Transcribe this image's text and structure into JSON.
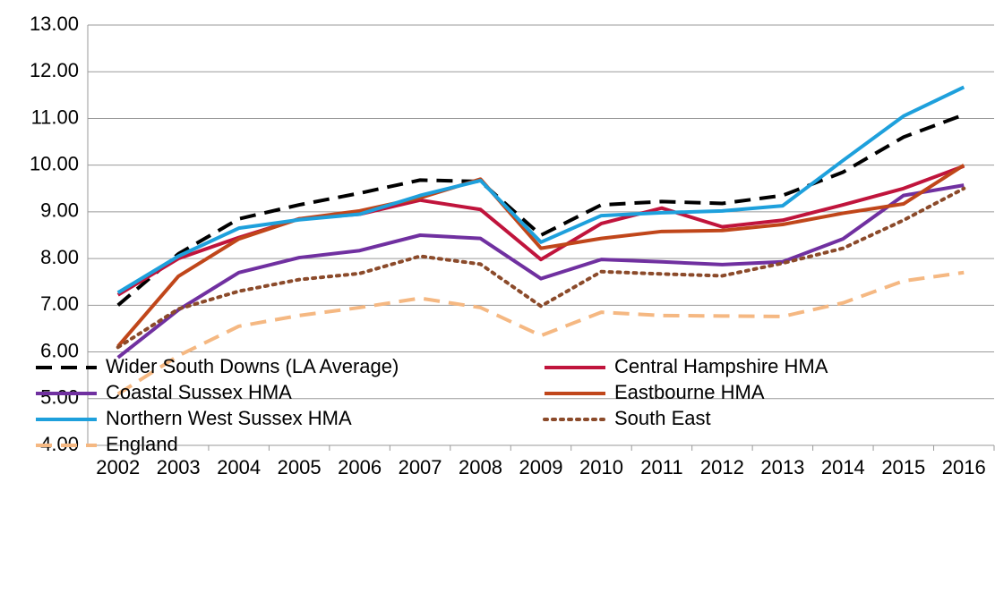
{
  "chart_data": {
    "type": "line",
    "categories": [
      "2002",
      "2003",
      "2004",
      "2005",
      "2006",
      "2007",
      "2008",
      "2009",
      "2010",
      "2011",
      "2012",
      "2013",
      "2014",
      "2015",
      "2016"
    ],
    "ylim": [
      4,
      13
    ],
    "yticks": [
      {
        "value": 4,
        "label": "4.00"
      },
      {
        "value": 5,
        "label": "5.00"
      },
      {
        "value": 6,
        "label": "6.00"
      },
      {
        "value": 7,
        "label": "7.00"
      },
      {
        "value": 8,
        "label": "8.00"
      },
      {
        "value": 9,
        "label": "9.00"
      },
      {
        "value": 10,
        "label": "10.00"
      },
      {
        "value": 11,
        "label": "11.00"
      },
      {
        "value": 12,
        "label": "12.00"
      },
      {
        "value": 13,
        "label": "13.00"
      }
    ],
    "grid": true,
    "legend": "bottom",
    "series": [
      {
        "name": "Wider South Downs (LA Average)",
        "color": "#000000",
        "style": "dashed",
        "values": [
          7.0,
          8.1,
          8.85,
          9.15,
          9.4,
          9.68,
          9.65,
          8.5,
          9.15,
          9.22,
          9.18,
          9.35,
          9.85,
          10.6,
          11.08
        ]
      },
      {
        "name": "Central Hampshire HMA",
        "color": "#c0143c",
        "style": "solid",
        "values": [
          7.22,
          8.0,
          8.45,
          8.85,
          8.95,
          9.25,
          9.05,
          7.98,
          8.75,
          9.08,
          8.68,
          8.82,
          9.15,
          9.5,
          9.98
        ]
      },
      {
        "name": "Coastal Sussex HMA",
        "color": "#7030a0",
        "style": "solid",
        "values": [
          5.88,
          6.9,
          7.7,
          8.02,
          8.17,
          8.5,
          8.43,
          7.57,
          7.98,
          7.93,
          7.87,
          7.93,
          8.42,
          9.35,
          9.57
        ]
      },
      {
        "name": "Eastbourne HMA",
        "color": "#c0461a",
        "style": "solid",
        "values": [
          6.12,
          7.62,
          8.42,
          8.85,
          9.02,
          9.3,
          9.7,
          8.22,
          8.43,
          8.58,
          8.6,
          8.73,
          8.97,
          9.17,
          10.0
        ]
      },
      {
        "name": "Northern West Sussex HMA",
        "color": "#1ea0dc",
        "style": "solid",
        "values": [
          7.27,
          8.05,
          8.65,
          8.83,
          8.95,
          9.35,
          9.67,
          8.35,
          8.92,
          8.98,
          9.02,
          9.13,
          10.1,
          11.05,
          11.67
        ]
      },
      {
        "name": "South East",
        "color": "#8b4a2a",
        "style": "dotted",
        "values": [
          6.1,
          6.92,
          7.3,
          7.55,
          7.68,
          8.05,
          7.88,
          6.98,
          7.72,
          7.67,
          7.63,
          7.9,
          8.22,
          8.82,
          9.5
        ]
      },
      {
        "name": "England",
        "color": "#f5b882",
        "style": "dashed",
        "values": [
          5.1,
          5.92,
          6.55,
          6.78,
          6.95,
          7.15,
          6.95,
          6.35,
          6.85,
          6.78,
          6.77,
          6.76,
          7.05,
          7.52,
          7.7
        ]
      }
    ]
  }
}
